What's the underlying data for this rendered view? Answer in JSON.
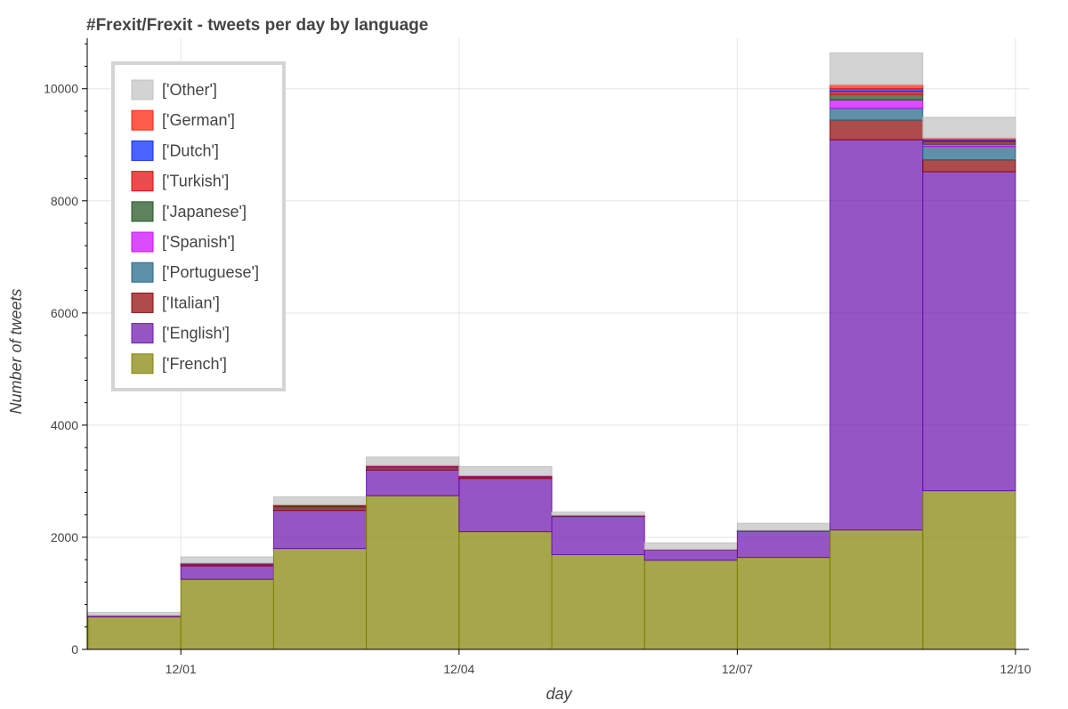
{
  "chart_data": {
    "type": "bar",
    "stacked": true,
    "title": "#Frexit/Frexit - tweets per day by language",
    "xlabel": "day",
    "ylabel": "Number of tweets",
    "ylim": [
      0,
      10900
    ],
    "yticks": [
      0,
      2000,
      4000,
      6000,
      8000,
      10000
    ],
    "xticks": [
      "12/01",
      "12/04",
      "12/07",
      "12/10"
    ],
    "grid": true,
    "legend_position": "top-left",
    "bins": 10,
    "series": [
      {
        "name": "['French']",
        "color": "#808000",
        "values": [
          580,
          1250,
          1800,
          2740,
          2100,
          1690,
          1590,
          1640,
          2130,
          2830
        ]
      },
      {
        "name": "['English']",
        "color": "#6a0dad",
        "values": [
          20,
          240,
          680,
          460,
          950,
          680,
          190,
          470,
          6960,
          5690
        ]
      },
      {
        "name": "['Italian']",
        "color": "#8b0000",
        "values": [
          5,
          20,
          45,
          40,
          20,
          10,
          5,
          10,
          350,
          210
        ]
      },
      {
        "name": "['Portuguese']",
        "color": "#1a6384",
        "values": [
          0,
          5,
          10,
          10,
          5,
          5,
          0,
          5,
          210,
          240
        ]
      },
      {
        "name": "['Spanish']",
        "color": "#cc00ff",
        "values": [
          0,
          5,
          10,
          5,
          5,
          5,
          0,
          0,
          150,
          40
        ]
      },
      {
        "name": "['Japanese']",
        "color": "#1a4d1a",
        "values": [
          0,
          5,
          10,
          5,
          5,
          0,
          0,
          0,
          100,
          40
        ]
      },
      {
        "name": "['Turkish']",
        "color": "#e00000",
        "values": [
          0,
          5,
          10,
          5,
          5,
          0,
          0,
          0,
          50,
          20
        ]
      },
      {
        "name": "['Dutch']",
        "color": "#0022ff",
        "values": [
          0,
          5,
          5,
          5,
          5,
          0,
          0,
          0,
          50,
          20
        ]
      },
      {
        "name": "['German']",
        "color": "#ff1a00",
        "values": [
          0,
          5,
          10,
          10,
          5,
          5,
          0,
          0,
          70,
          30
        ]
      },
      {
        "name": "['Other']",
        "color": "#c0c0c0",
        "values": [
          55,
          110,
          140,
          150,
          160,
          55,
          115,
          125,
          570,
          370
        ]
      }
    ]
  }
}
